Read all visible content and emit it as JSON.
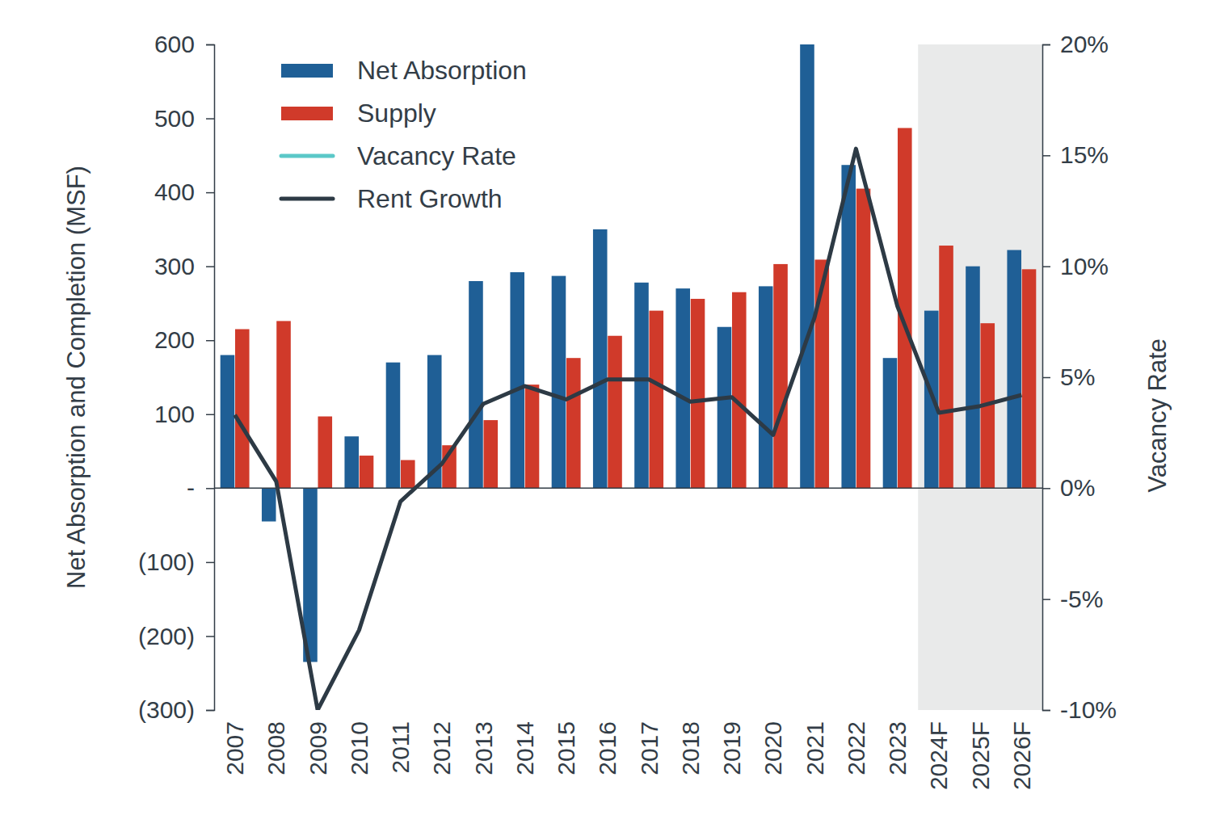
{
  "chart_data": {
    "type": "bar",
    "y_label": "Net Absorption and Completion (MSF)",
    "y2_label": "Vacancy Rate",
    "categories": [
      "2007",
      "2008",
      "2009",
      "2010",
      "2011",
      "2012",
      "2013",
      "2014",
      "2015",
      "2016",
      "2017",
      "2018",
      "2019",
      "2020",
      "2021",
      "2022",
      "2023",
      "2024F",
      "2025F",
      "2026F"
    ],
    "series": [
      {
        "name": "Net Absorption",
        "type": "bar",
        "color": "#1f5f96",
        "values": [
          180,
          -45,
          -235,
          70,
          170,
          180,
          280,
          292,
          287,
          350,
          278,
          270,
          218,
          273,
          600,
          437,
          176,
          240,
          300,
          322
        ]
      },
      {
        "name": "Supply",
        "type": "bar",
        "color": "#d03a2a",
        "values": [
          215,
          226,
          97,
          44,
          38,
          58,
          92,
          140,
          176,
          206,
          240,
          256,
          265,
          303,
          309,
          405,
          487,
          328,
          223,
          296
        ]
      },
      {
        "name": "Vacancy Rate",
        "type": "line",
        "axis": "y2",
        "color": "#5bc8c8",
        "values": [
          null,
          null,
          null,
          null,
          null,
          null,
          null,
          null,
          null,
          null,
          null,
          null,
          null,
          null,
          null,
          null,
          null,
          null,
          null,
          null
        ]
      },
      {
        "name": "Rent Growth",
        "type": "line",
        "axis": "y2",
        "color": "#2d3a45",
        "values": [
          3.3,
          0.3,
          -10,
          -6.4,
          -0.6,
          1.1,
          3.8,
          4.6,
          4.0,
          4.9,
          4.9,
          3.9,
          4.1,
          2.4,
          7.7,
          15.3,
          8.2,
          3.4,
          3.7,
          4.2
        ]
      }
    ],
    "ylim": [
      -300,
      600
    ],
    "yticks": [
      {
        "value": -300,
        "label": "(300)"
      },
      {
        "value": -200,
        "label": "(200)"
      },
      {
        "value": -100,
        "label": "(100)"
      },
      {
        "value": 0,
        "label": "-"
      },
      100,
      200,
      300,
      400,
      500,
      600
    ],
    "y2lim": [
      -10,
      20
    ],
    "y2ticks": [
      {
        "value": -10,
        "label": "-10%"
      },
      {
        "value": -5,
        "label": "-5%"
      },
      {
        "value": 0,
        "label": "0%"
      },
      {
        "value": 5,
        "label": "5%"
      },
      {
        "value": 10,
        "label": "10%"
      },
      {
        "value": 15,
        "label": "15%"
      },
      {
        "value": 20,
        "label": "20%"
      }
    ],
    "grid": false,
    "legend": "upper left"
  }
}
